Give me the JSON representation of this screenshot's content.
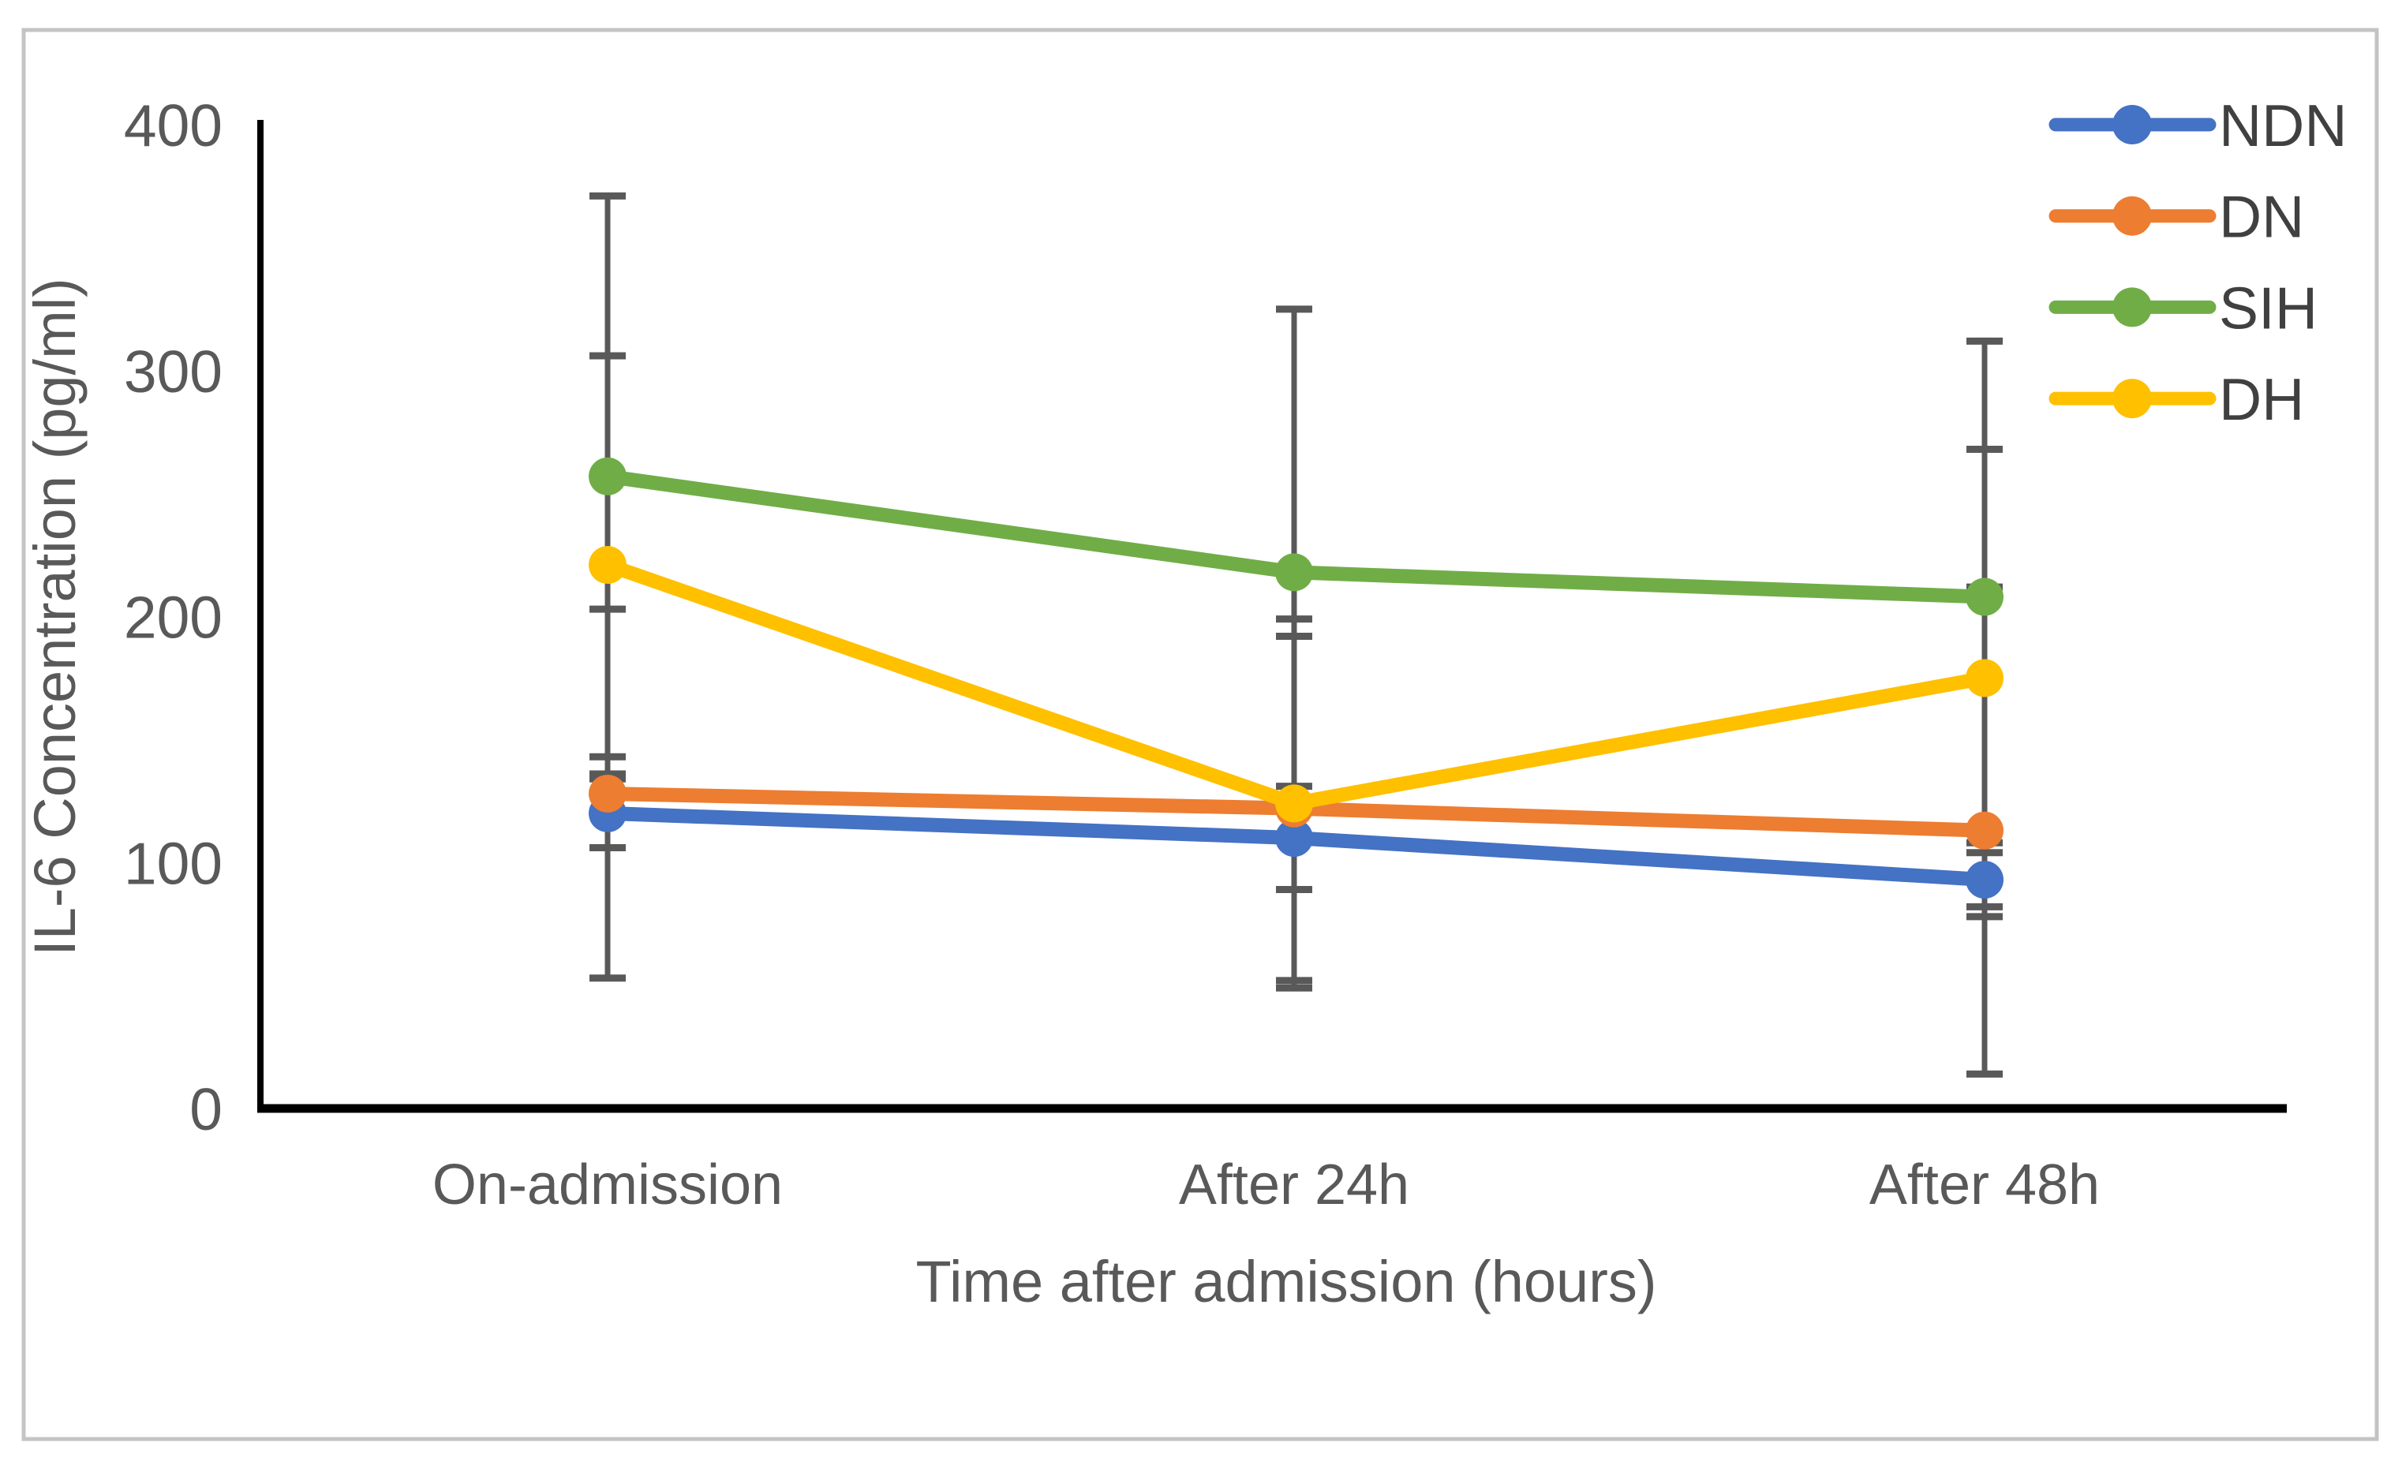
{
  "chart_data": {
    "type": "line",
    "title": "",
    "xlabel": "Time after admission (hours)",
    "ylabel": "IL-6 Concentration (pg/ml)",
    "categories": [
      "On-admission",
      "After 24h",
      "After 48h"
    ],
    "yticks": [
      0,
      100,
      200,
      300,
      400
    ],
    "ylim": [
      0,
      400
    ],
    "grid": false,
    "legend_position": "top-right",
    "marker": "circle",
    "error_bars": "symmetric, per point",
    "series": [
      {
        "name": "NDN",
        "color": "#4472C4",
        "values": [
          120,
          110,
          93
        ],
        "errors": [
          14,
          21,
          15
        ]
      },
      {
        "name": "DN",
        "color": "#ED7D31",
        "values": [
          128,
          122,
          113
        ],
        "errors": [
          75,
          70,
          99
        ]
      },
      {
        "name": "SIH",
        "color": "#70AD47",
        "values": [
          257,
          218,
          208
        ],
        "errors": [
          114,
          107,
          104
        ]
      },
      {
        "name": "DH",
        "color": "#FFC000",
        "values": [
          221,
          124,
          175
        ],
        "errors": [
          85,
          75,
          93
        ]
      }
    ],
    "colors": {
      "axis_line": "#000000",
      "error_bar": "#595959",
      "tick_label": "#595959",
      "axis_title": "#595959",
      "legend_text": "#404040",
      "figure_border": "#C4C4C4",
      "background": "#FFFFFF"
    }
  }
}
